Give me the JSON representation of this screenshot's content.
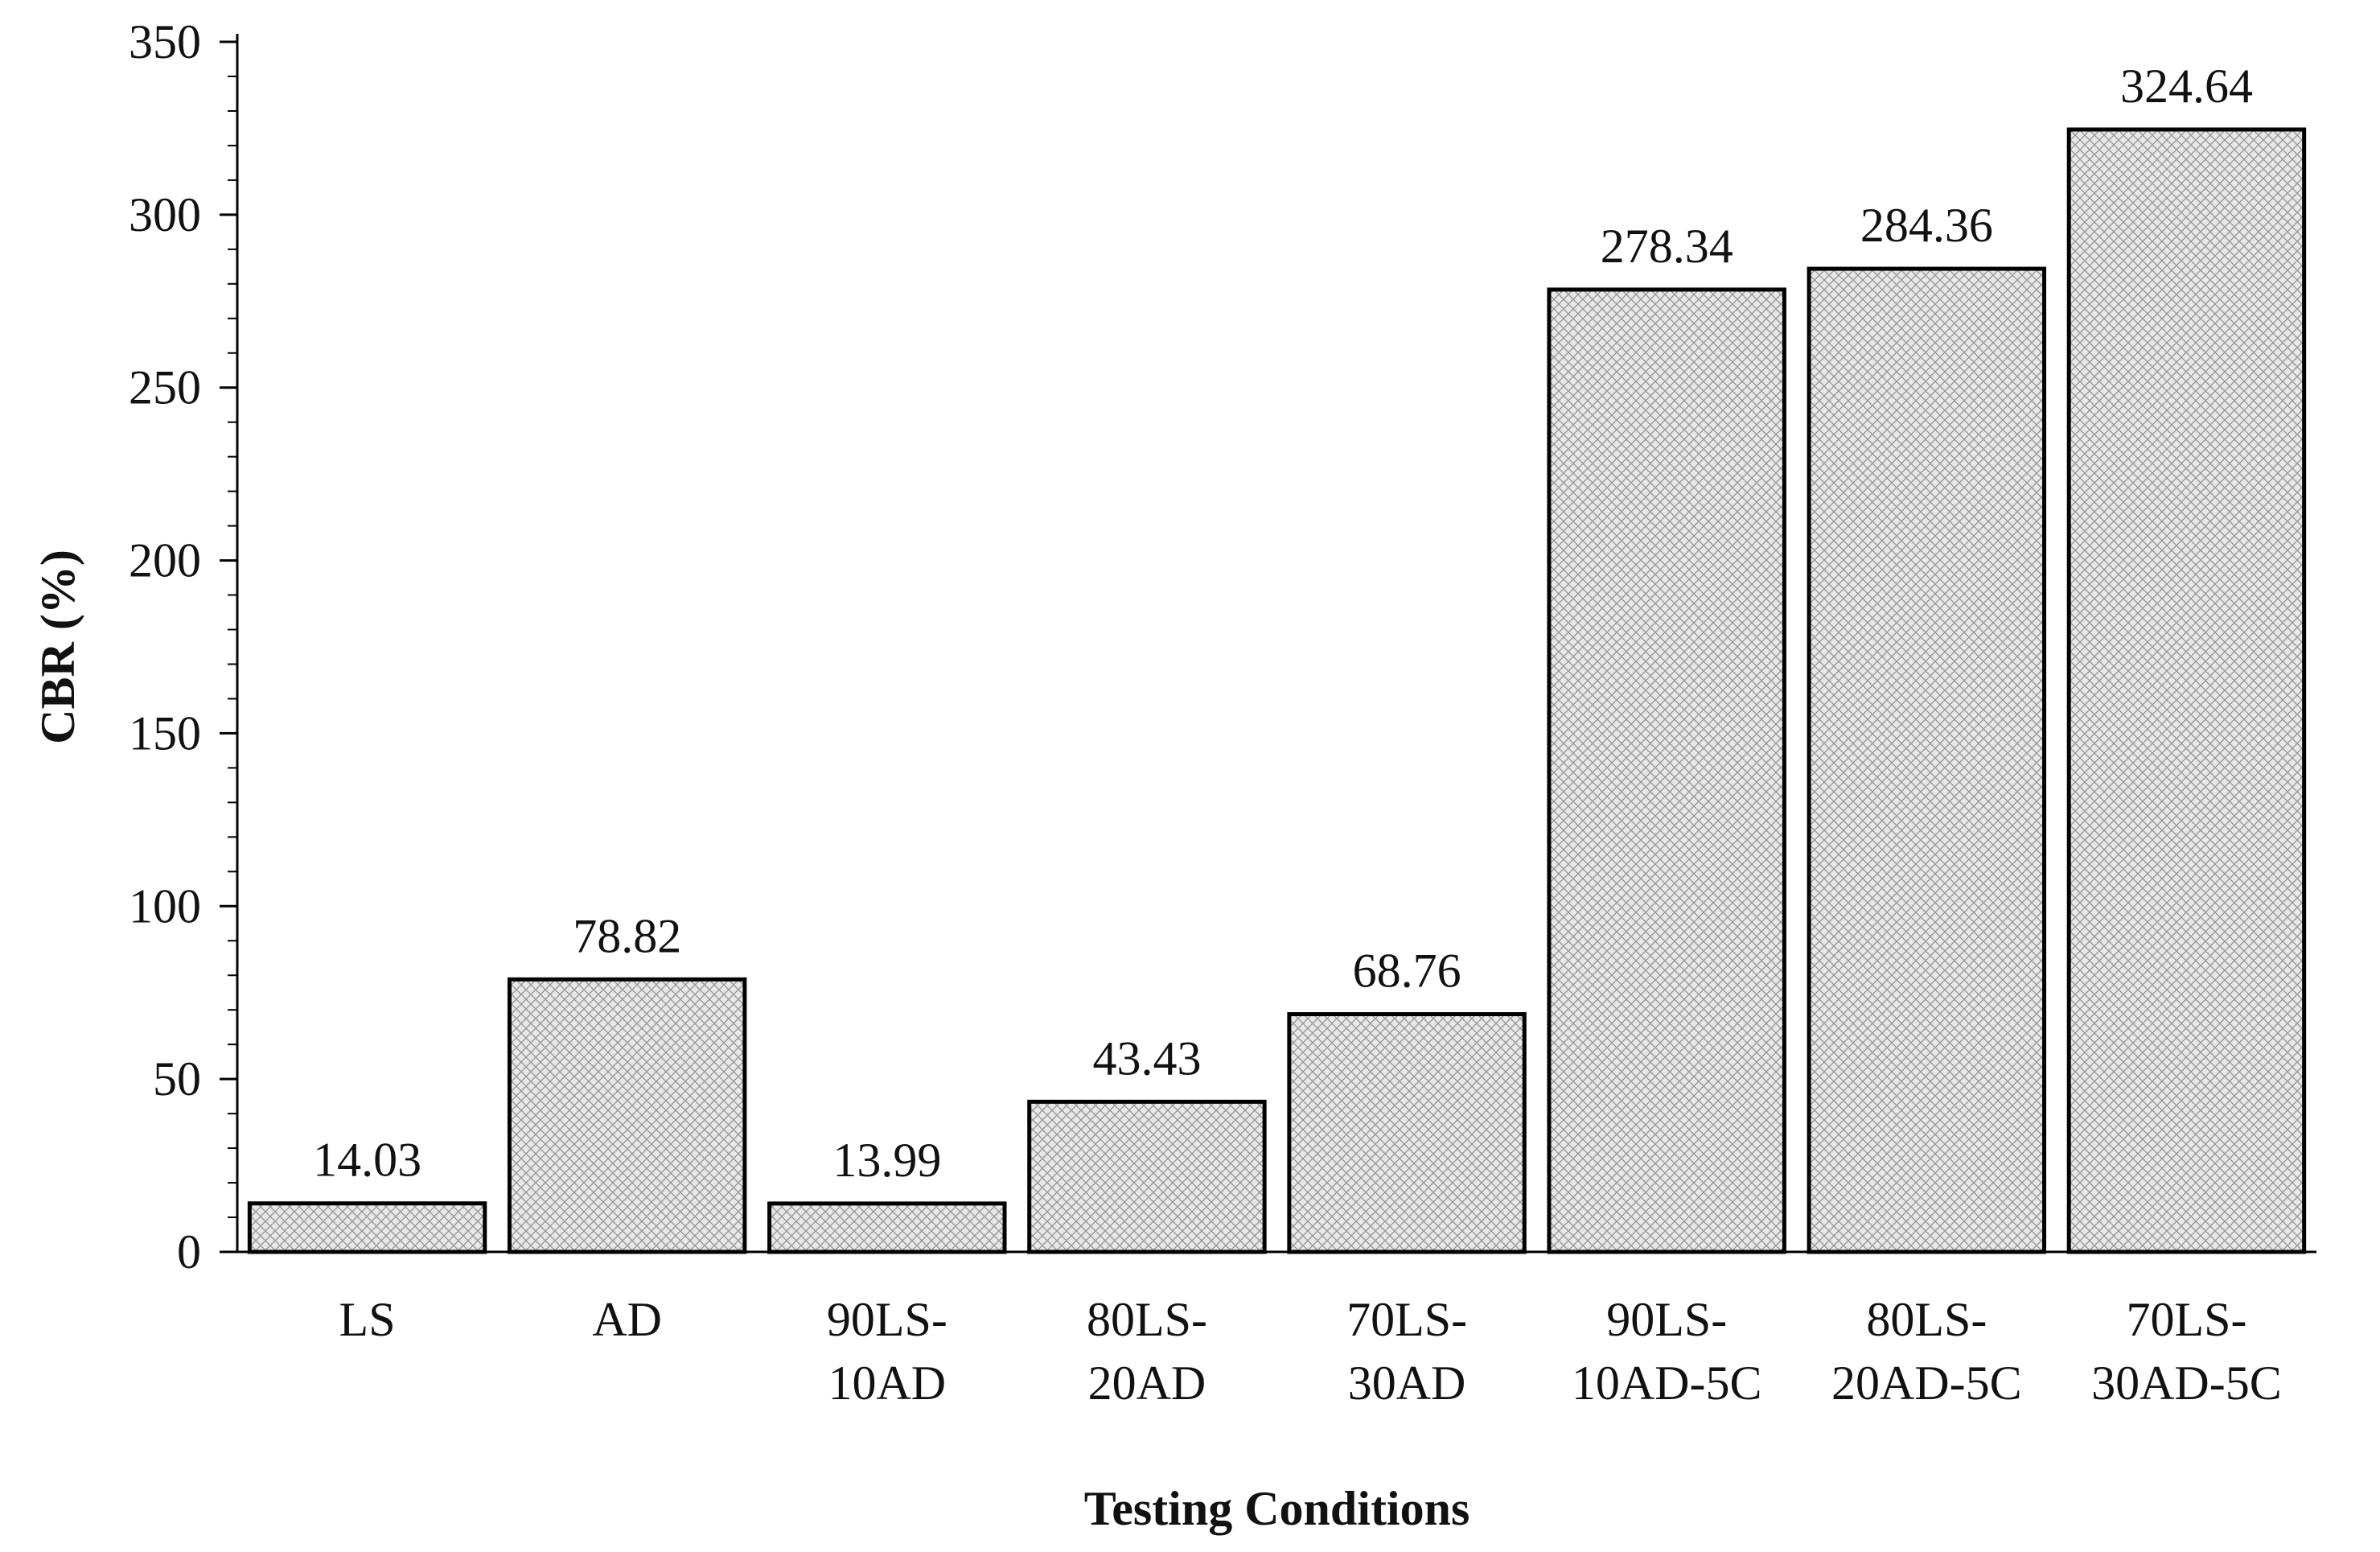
{
  "chart_data": {
    "type": "bar",
    "title": "",
    "xlabel": "Testing Conditions",
    "ylabel": "CBR (%)",
    "ylim": [
      0,
      350
    ],
    "yticks": [
      "0",
      "50",
      "100",
      "150",
      "200",
      "250",
      "300",
      "350"
    ],
    "minor_tick_step": 10,
    "grid": false,
    "legend": "none",
    "categories": [
      [
        "LS"
      ],
      [
        "AD"
      ],
      [
        "90LS-",
        "10AD"
      ],
      [
        "80LS-",
        "20AD"
      ],
      [
        "70LS-",
        "30AD"
      ],
      [
        "90LS-",
        "10AD-5C"
      ],
      [
        "80LS-",
        "20AD-5C"
      ],
      [
        "70LS-",
        "30AD-5C"
      ]
    ],
    "values": [
      14.03,
      78.82,
      13.99,
      43.43,
      68.76,
      278.34,
      284.36,
      324.64
    ],
    "data_labels": [
      "14.03",
      "78.82",
      "13.99",
      "43.43",
      "68.76",
      "278.34",
      "284.36",
      "324.64"
    ],
    "colors": {
      "bar_fill": "#e8e8e8",
      "bar_hatch": "#9a9a9a",
      "bar_edge": "#000000",
      "axis": "#000000",
      "text": "#111111"
    }
  }
}
